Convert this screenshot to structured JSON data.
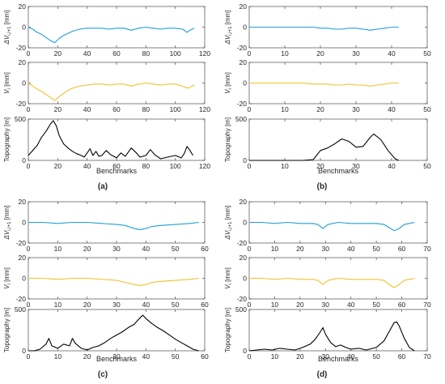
{
  "figure_colors": {
    "dv": "#1f9fd7",
    "v": "#f2c12e",
    "topo": "#000000",
    "axis": "#4d4d4d"
  },
  "chart_data": [
    {
      "panel_label": "(a)",
      "type": "line",
      "xlabel": "Benchmarks",
      "xticks": [
        0,
        20,
        40,
        60,
        80,
        100,
        120
      ],
      "xlim": [
        0,
        120
      ],
      "subplots": [
        {
          "ylabel_main": "ΔV",
          "ylabel_sub": "i,i+1",
          "ylabel_unit": "[mm]",
          "ylim": [
            -20,
            20
          ],
          "yticks": [
            -20,
            0,
            20
          ],
          "color": "#1f9fd7",
          "x": [
            0,
            3,
            6,
            9,
            12,
            15,
            18,
            21,
            24,
            27,
            30,
            35,
            40,
            45,
            50,
            55,
            60,
            65,
            70,
            75,
            80,
            85,
            90,
            95,
            100,
            105,
            108,
            110,
            113
          ],
          "y": [
            0,
            -2,
            -5,
            -7,
            -10,
            -13,
            -15,
            -11,
            -8,
            -6,
            -4,
            -2,
            -1,
            -1,
            -1,
            -2,
            -1,
            -1,
            -3,
            -1,
            0,
            -1,
            -2,
            -1,
            -1,
            -2,
            -5,
            -3,
            -1
          ]
        },
        {
          "ylabel_main": "V",
          "ylabel_sub": "i",
          "ylabel_unit": "[mm]",
          "ylim": [
            -20,
            20
          ],
          "yticks": [
            -20,
            0,
            20
          ],
          "color": "#f2c12e",
          "x": [
            0,
            3,
            6,
            9,
            12,
            15,
            18,
            21,
            24,
            27,
            30,
            35,
            40,
            45,
            50,
            55,
            60,
            65,
            70,
            75,
            80,
            85,
            90,
            95,
            100,
            105,
            108,
            110,
            113
          ],
          "y": [
            0,
            -3,
            -6,
            -8,
            -11,
            -14,
            -17,
            -13,
            -10,
            -7,
            -5,
            -3,
            -2,
            -1,
            -1,
            -2,
            -1,
            -1,
            -3,
            -1,
            0,
            -1,
            -2,
            -1,
            -1,
            -3,
            -5,
            -4,
            -2
          ]
        },
        {
          "ylabel_main": "Topography [m]",
          "ylim": [
            0,
            500
          ],
          "yticks": [
            0,
            500
          ],
          "color": "#000000",
          "x": [
            0,
            3,
            6,
            9,
            12,
            15,
            17,
            19,
            21,
            24,
            27,
            30,
            33,
            36,
            38,
            40,
            42,
            44,
            46,
            48,
            50,
            53,
            56,
            60,
            63,
            66,
            70,
            73,
            76,
            80,
            83,
            86,
            90,
            95,
            100,
            104,
            106,
            108,
            110,
            112
          ],
          "y": [
            60,
            120,
            180,
            280,
            350,
            440,
            480,
            420,
            300,
            200,
            150,
            110,
            80,
            60,
            40,
            90,
            140,
            60,
            110,
            50,
            60,
            120,
            70,
            30,
            90,
            50,
            150,
            100,
            40,
            60,
            130,
            70,
            20,
            40,
            60,
            30,
            80,
            170,
            120,
            60
          ]
        }
      ]
    },
    {
      "panel_label": "(b)",
      "type": "line",
      "xlabel": "Benchmarks",
      "xticks": [
        0,
        10,
        20,
        30,
        40,
        50
      ],
      "xlim": [
        0,
        50
      ],
      "subplots": [
        {
          "ylabel_main": "ΔV",
          "ylabel_sub": "i,i+1",
          "ylabel_unit": "[mm]",
          "ylim": [
            -20,
            20
          ],
          "yticks": [
            -20,
            0,
            20
          ],
          "color": "#1f9fd7",
          "x": [
            0,
            5,
            10,
            15,
            18,
            20,
            22,
            24,
            26,
            28,
            30,
            32,
            34,
            36,
            38,
            40,
            42
          ],
          "y": [
            0,
            0,
            0,
            0,
            0,
            -1,
            -1,
            -2,
            -2,
            -1,
            -1,
            -2,
            -3,
            -2,
            -1,
            0,
            0
          ]
        },
        {
          "ylabel_main": "V",
          "ylabel_sub": "i",
          "ylabel_unit": "[mm]",
          "ylim": [
            -20,
            20
          ],
          "yticks": [
            -20,
            0,
            20
          ],
          "color": "#f2c12e",
          "x": [
            0,
            5,
            10,
            15,
            18,
            20,
            22,
            24,
            26,
            28,
            30,
            32,
            34,
            36,
            38,
            40,
            42
          ],
          "y": [
            0,
            0,
            0,
            0,
            -1,
            -1,
            -1,
            -2,
            -2,
            -1,
            -2,
            -2,
            -3,
            -2,
            -1,
            0,
            0
          ]
        },
        {
          "ylabel_main": "Topography [m]",
          "ylim": [
            0,
            500
          ],
          "yticks": [
            0,
            500
          ],
          "color": "#000000",
          "x": [
            0,
            5,
            10,
            15,
            18,
            20,
            22,
            24,
            26,
            28,
            30,
            32,
            34,
            35,
            37,
            39,
            41,
            42
          ],
          "y": [
            0,
            0,
            0,
            0,
            10,
            120,
            150,
            200,
            260,
            230,
            160,
            170,
            280,
            320,
            250,
            120,
            20,
            0
          ]
        }
      ]
    },
    {
      "panel_label": "(c)",
      "type": "line",
      "xlabel": "Benchmarks",
      "xticks": [
        0,
        10,
        20,
        30,
        40,
        50,
        60
      ],
      "xlim": [
        0,
        60
      ],
      "subplots": [
        {
          "ylabel_main": "ΔV",
          "ylabel_sub": "i,i+1",
          "ylabel_unit": "[mm]",
          "ylim": [
            -20,
            20
          ],
          "yticks": [
            -20,
            0,
            20
          ],
          "color": "#1f9fd7",
          "x": [
            0,
            5,
            10,
            15,
            20,
            25,
            30,
            33,
            36,
            38,
            40,
            42,
            45,
            50,
            55,
            58
          ],
          "y": [
            0,
            0,
            -1,
            0,
            0,
            -1,
            -2,
            -3,
            -6,
            -7,
            -6,
            -4,
            -3,
            -2,
            -1,
            0
          ]
        },
        {
          "ylabel_main": "V",
          "ylabel_sub": "i",
          "ylabel_unit": "[mm]",
          "ylim": [
            -20,
            20
          ],
          "yticks": [
            -20,
            0,
            20
          ],
          "color": "#f2c12e",
          "x": [
            0,
            5,
            10,
            15,
            20,
            25,
            30,
            33,
            36,
            38,
            40,
            42,
            45,
            50,
            55,
            58
          ],
          "y": [
            0,
            0,
            -1,
            0,
            0,
            -1,
            -2,
            -4,
            -6,
            -7,
            -6,
            -4,
            -3,
            -2,
            -1,
            0
          ]
        },
        {
          "ylabel_main": "Topography [m]",
          "ylim": [
            0,
            500
          ],
          "yticks": [
            0,
            500
          ],
          "color": "#000000",
          "x": [
            0,
            2,
            4,
            6,
            7,
            8,
            10,
            12,
            14,
            15,
            16,
            18,
            20,
            22,
            24,
            26,
            28,
            30,
            32,
            34,
            36,
            38,
            39,
            40,
            42,
            44,
            46,
            48,
            50,
            52,
            54,
            56,
            58
          ],
          "y": [
            0,
            0,
            20,
            80,
            150,
            60,
            30,
            80,
            60,
            150,
            90,
            30,
            10,
            40,
            60,
            100,
            150,
            190,
            230,
            280,
            320,
            400,
            430,
            390,
            330,
            280,
            240,
            190,
            140,
            100,
            60,
            20,
            0
          ]
        }
      ]
    },
    {
      "panel_label": "(d)",
      "type": "line",
      "xlabel": "Benchmarks",
      "xticks": [
        0,
        10,
        20,
        30,
        40,
        50,
        60,
        70
      ],
      "xlim": [
        0,
        70
      ],
      "subplots": [
        {
          "ylabel_main": "ΔV",
          "ylabel_sub": "i,i+1",
          "ylabel_unit": "[mm]",
          "ylim": [
            -20,
            20
          ],
          "yticks": [
            -20,
            0,
            20
          ],
          "color": "#1f9fd7",
          "x": [
            0,
            5,
            10,
            15,
            20,
            25,
            27,
            29,
            31,
            33,
            35,
            40,
            45,
            50,
            53,
            55,
            57,
            59,
            61,
            63,
            65
          ],
          "y": [
            0,
            0,
            -1,
            0,
            -1,
            -1,
            -2,
            -6,
            -2,
            -1,
            0,
            -1,
            -1,
            -1,
            -2,
            -5,
            -8,
            -6,
            -2,
            -1,
            0
          ]
        },
        {
          "ylabel_main": "V",
          "ylabel_sub": "i",
          "ylabel_unit": "[mm]",
          "ylim": [
            -20,
            20
          ],
          "yticks": [
            -20,
            0,
            20
          ],
          "color": "#f2c12e",
          "x": [
            0,
            5,
            10,
            15,
            20,
            25,
            27,
            29,
            31,
            33,
            35,
            40,
            45,
            50,
            53,
            55,
            57,
            59,
            61,
            63,
            65
          ],
          "y": [
            0,
            0,
            -1,
            0,
            -1,
            -1,
            -2,
            -6,
            -2,
            -1,
            0,
            -1,
            -1,
            -1,
            -2,
            -6,
            -9,
            -6,
            -2,
            -1,
            0
          ]
        },
        {
          "ylabel_main": "Topography [m]",
          "ylim": [
            0,
            500
          ],
          "yticks": [
            0,
            500
          ],
          "color": "#000000",
          "x": [
            0,
            3,
            6,
            9,
            12,
            15,
            18,
            21,
            24,
            26,
            28,
            29,
            30,
            32,
            34,
            36,
            38,
            40,
            43,
            46,
            50,
            53,
            55,
            57,
            58,
            59,
            61,
            63,
            65
          ],
          "y": [
            0,
            10,
            20,
            10,
            30,
            20,
            10,
            40,
            80,
            140,
            230,
            280,
            200,
            100,
            50,
            70,
            40,
            20,
            30,
            10,
            40,
            120,
            230,
            340,
            350,
            300,
            150,
            40,
            0
          ]
        }
      ]
    }
  ]
}
